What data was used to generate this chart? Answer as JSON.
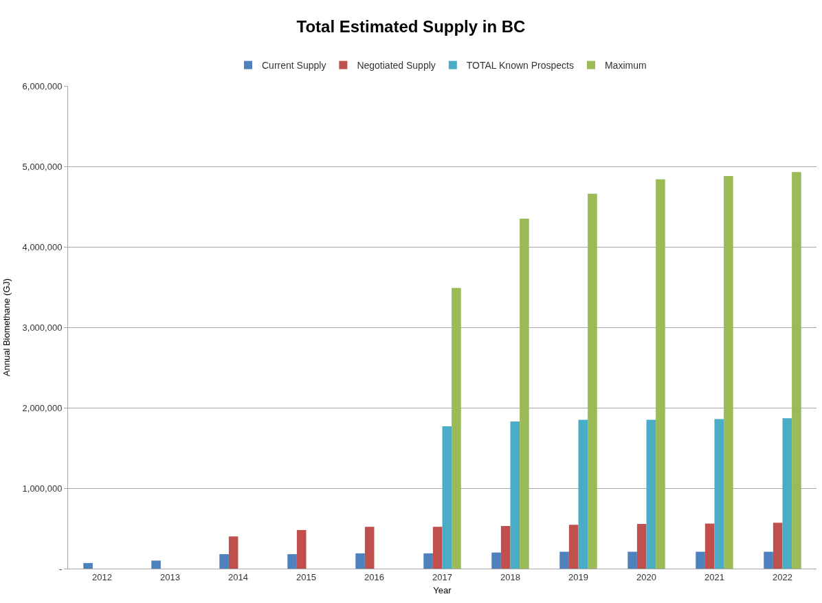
{
  "chart_data": {
    "type": "bar",
    "title": "Total Estimated Supply in BC",
    "xlabel": "Year",
    "ylabel": "Annual Biomethane (GJ)",
    "categories": [
      "2012",
      "2013",
      "2014",
      "2015",
      "2016",
      "2017",
      "2018",
      "2019",
      "2020",
      "2021",
      "2022"
    ],
    "series": [
      {
        "name": "Current Supply",
        "color": "#4f81bd",
        "values": [
          70000,
          100000,
          180000,
          180000,
          190000,
          190000,
          200000,
          210000,
          210000,
          210000,
          210000
        ]
      },
      {
        "name": "Negotiated Supply",
        "color": "#c0504d",
        "values": [
          null,
          null,
          400000,
          480000,
          520000,
          520000,
          530000,
          545000,
          555000,
          560000,
          570000
        ]
      },
      {
        "name": "TOTAL Known Prospects",
        "color": "#4bacc6",
        "values": [
          null,
          null,
          null,
          null,
          null,
          1770000,
          1830000,
          1850000,
          1850000,
          1860000,
          1870000
        ]
      },
      {
        "name": "Maximum",
        "color": "#9bbb59",
        "values": [
          null,
          null,
          null,
          null,
          null,
          3490000,
          4350000,
          4660000,
          4840000,
          4880000,
          4930000
        ]
      }
    ],
    "ylim": [
      0,
      6000000
    ],
    "yticks": [
      {
        "value": 0,
        "label": "-"
      },
      {
        "value": 1000000,
        "label": "1,000,000"
      },
      {
        "value": 2000000,
        "label": "2,000,000"
      },
      {
        "value": 3000000,
        "label": "3,000,000"
      },
      {
        "value": 4000000,
        "label": "4,000,000"
      },
      {
        "value": 5000000,
        "label": "5,000,000"
      },
      {
        "value": 6000000,
        "label": "6,000,000"
      }
    ],
    "grid": "y",
    "legend": "top"
  }
}
